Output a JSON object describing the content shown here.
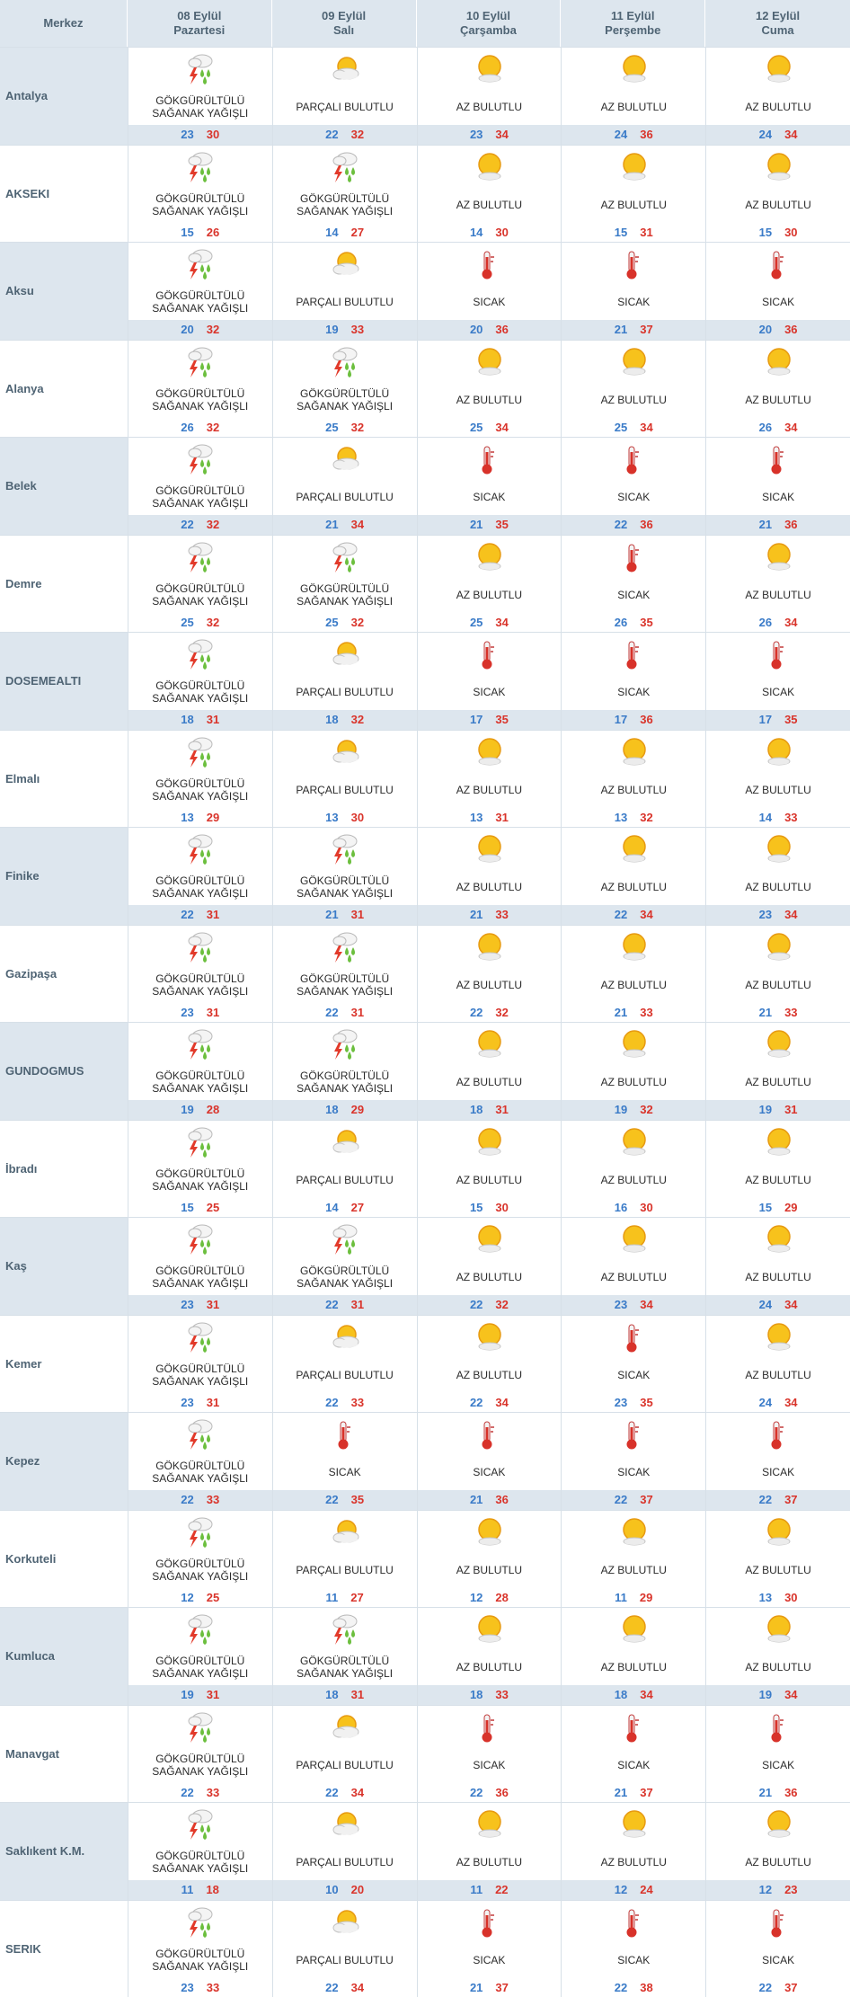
{
  "header": {
    "merkez_label": "Merkez",
    "days": [
      {
        "date": "08 Eylül",
        "weekday": "Pazartesi"
      },
      {
        "date": "09 Eylül",
        "weekday": "Salı"
      },
      {
        "date": "10 Eylül",
        "weekday": "Çarşamba"
      },
      {
        "date": "11 Eylül",
        "weekday": "Perşembe"
      },
      {
        "date": "12 Eylül",
        "weekday": "Cuma"
      }
    ]
  },
  "colors": {
    "header_bg": "#dde6ee",
    "min_temp": "#3a7bc8",
    "max_temp": "#d9342b",
    "city_text": "#4f6474"
  },
  "conditions": {
    "storm": {
      "label": "GÖKGÜRÜLTÜLÜ SAĞANAK YAĞIŞLI",
      "icon": "thunderstorm-rain-icon"
    },
    "partly": {
      "label": "PARÇALI BULUTLU",
      "icon": "partly-cloudy-icon"
    },
    "few": {
      "label": "AZ BULUTLU",
      "icon": "mostly-sunny-icon"
    },
    "hot": {
      "label": "SICAK",
      "icon": "thermometer-hot-icon"
    }
  },
  "rows": [
    {
      "city": "Antalya",
      "days": [
        {
          "cond": "storm",
          "min": "23",
          "max": "30"
        },
        {
          "cond": "partly",
          "min": "22",
          "max": "32"
        },
        {
          "cond": "few",
          "min": "23",
          "max": "34"
        },
        {
          "cond": "few",
          "min": "24",
          "max": "36"
        },
        {
          "cond": "few",
          "min": "24",
          "max": "34"
        }
      ]
    },
    {
      "city": "AKSEKI",
      "days": [
        {
          "cond": "storm",
          "min": "15",
          "max": "26"
        },
        {
          "cond": "storm",
          "min": "14",
          "max": "27"
        },
        {
          "cond": "few",
          "min": "14",
          "max": "30"
        },
        {
          "cond": "few",
          "min": "15",
          "max": "31"
        },
        {
          "cond": "few",
          "min": "15",
          "max": "30"
        }
      ]
    },
    {
      "city": "Aksu",
      "days": [
        {
          "cond": "storm",
          "min": "20",
          "max": "32"
        },
        {
          "cond": "partly",
          "min": "19",
          "max": "33"
        },
        {
          "cond": "hot",
          "min": "20",
          "max": "36"
        },
        {
          "cond": "hot",
          "min": "21",
          "max": "37"
        },
        {
          "cond": "hot",
          "min": "20",
          "max": "36"
        }
      ]
    },
    {
      "city": "Alanya",
      "days": [
        {
          "cond": "storm",
          "min": "26",
          "max": "32"
        },
        {
          "cond": "storm",
          "min": "25",
          "max": "32"
        },
        {
          "cond": "few",
          "min": "25",
          "max": "34"
        },
        {
          "cond": "few",
          "min": "25",
          "max": "34"
        },
        {
          "cond": "few",
          "min": "26",
          "max": "34"
        }
      ]
    },
    {
      "city": "Belek",
      "days": [
        {
          "cond": "storm",
          "min": "22",
          "max": "32"
        },
        {
          "cond": "partly",
          "min": "21",
          "max": "34"
        },
        {
          "cond": "hot",
          "min": "21",
          "max": "35"
        },
        {
          "cond": "hot",
          "min": "22",
          "max": "36"
        },
        {
          "cond": "hot",
          "min": "21",
          "max": "36"
        }
      ]
    },
    {
      "city": "Demre",
      "days": [
        {
          "cond": "storm",
          "min": "25",
          "max": "32"
        },
        {
          "cond": "storm",
          "min": "25",
          "max": "32"
        },
        {
          "cond": "few",
          "min": "25",
          "max": "34"
        },
        {
          "cond": "hot",
          "min": "26",
          "max": "35"
        },
        {
          "cond": "few",
          "min": "26",
          "max": "34"
        }
      ]
    },
    {
      "city": "DOSEMEALTI",
      "days": [
        {
          "cond": "storm",
          "min": "18",
          "max": "31"
        },
        {
          "cond": "partly",
          "min": "18",
          "max": "32"
        },
        {
          "cond": "hot",
          "min": "17",
          "max": "35"
        },
        {
          "cond": "hot",
          "min": "17",
          "max": "36"
        },
        {
          "cond": "hot",
          "min": "17",
          "max": "35"
        }
      ]
    },
    {
      "city": "Elmalı",
      "days": [
        {
          "cond": "storm",
          "min": "13",
          "max": "29"
        },
        {
          "cond": "partly",
          "min": "13",
          "max": "30"
        },
        {
          "cond": "few",
          "min": "13",
          "max": "31"
        },
        {
          "cond": "few",
          "min": "13",
          "max": "32"
        },
        {
          "cond": "few",
          "min": "14",
          "max": "33"
        }
      ]
    },
    {
      "city": "Finike",
      "days": [
        {
          "cond": "storm",
          "min": "22",
          "max": "31"
        },
        {
          "cond": "storm",
          "min": "21",
          "max": "31"
        },
        {
          "cond": "few",
          "min": "21",
          "max": "33"
        },
        {
          "cond": "few",
          "min": "22",
          "max": "34"
        },
        {
          "cond": "few",
          "min": "23",
          "max": "34"
        }
      ]
    },
    {
      "city": "Gazipaşa",
      "days": [
        {
          "cond": "storm",
          "min": "23",
          "max": "31"
        },
        {
          "cond": "storm",
          "min": "22",
          "max": "31"
        },
        {
          "cond": "few",
          "min": "22",
          "max": "32"
        },
        {
          "cond": "few",
          "min": "21",
          "max": "33"
        },
        {
          "cond": "few",
          "min": "21",
          "max": "33"
        }
      ]
    },
    {
      "city": "GUNDOGMUS",
      "days": [
        {
          "cond": "storm",
          "min": "19",
          "max": "28"
        },
        {
          "cond": "storm",
          "min": "18",
          "max": "29"
        },
        {
          "cond": "few",
          "min": "18",
          "max": "31"
        },
        {
          "cond": "few",
          "min": "19",
          "max": "32"
        },
        {
          "cond": "few",
          "min": "19",
          "max": "31"
        }
      ]
    },
    {
      "city": "İbradı",
      "days": [
        {
          "cond": "storm",
          "min": "15",
          "max": "25"
        },
        {
          "cond": "partly",
          "min": "14",
          "max": "27"
        },
        {
          "cond": "few",
          "min": "15",
          "max": "30"
        },
        {
          "cond": "few",
          "min": "16",
          "max": "30"
        },
        {
          "cond": "few",
          "min": "15",
          "max": "29"
        }
      ]
    },
    {
      "city": "Kaş",
      "days": [
        {
          "cond": "storm",
          "min": "23",
          "max": "31"
        },
        {
          "cond": "storm",
          "min": "22",
          "max": "31"
        },
        {
          "cond": "few",
          "min": "22",
          "max": "32"
        },
        {
          "cond": "few",
          "min": "23",
          "max": "34"
        },
        {
          "cond": "few",
          "min": "24",
          "max": "34"
        }
      ]
    },
    {
      "city": "Kemer",
      "days": [
        {
          "cond": "storm",
          "min": "23",
          "max": "31"
        },
        {
          "cond": "partly",
          "min": "22",
          "max": "33"
        },
        {
          "cond": "few",
          "min": "22",
          "max": "34"
        },
        {
          "cond": "hot",
          "min": "23",
          "max": "35"
        },
        {
          "cond": "few",
          "min": "24",
          "max": "34"
        }
      ]
    },
    {
      "city": "Kepez",
      "days": [
        {
          "cond": "storm",
          "min": "22",
          "max": "33"
        },
        {
          "cond": "hot",
          "min": "22",
          "max": "35"
        },
        {
          "cond": "hot",
          "min": "21",
          "max": "36"
        },
        {
          "cond": "hot",
          "min": "22",
          "max": "37"
        },
        {
          "cond": "hot",
          "min": "22",
          "max": "37"
        }
      ]
    },
    {
      "city": "Korkuteli",
      "days": [
        {
          "cond": "storm",
          "min": "12",
          "max": "25"
        },
        {
          "cond": "partly",
          "min": "11",
          "max": "27"
        },
        {
          "cond": "few",
          "min": "12",
          "max": "28"
        },
        {
          "cond": "few",
          "min": "11",
          "max": "29"
        },
        {
          "cond": "few",
          "min": "13",
          "max": "30"
        }
      ]
    },
    {
      "city": "Kumluca",
      "days": [
        {
          "cond": "storm",
          "min": "19",
          "max": "31"
        },
        {
          "cond": "storm",
          "min": "18",
          "max": "31"
        },
        {
          "cond": "few",
          "min": "18",
          "max": "33"
        },
        {
          "cond": "few",
          "min": "18",
          "max": "34"
        },
        {
          "cond": "few",
          "min": "19",
          "max": "34"
        }
      ]
    },
    {
      "city": "Manavgat",
      "days": [
        {
          "cond": "storm",
          "min": "22",
          "max": "33"
        },
        {
          "cond": "partly",
          "min": "22",
          "max": "34"
        },
        {
          "cond": "hot",
          "min": "22",
          "max": "36"
        },
        {
          "cond": "hot",
          "min": "21",
          "max": "37"
        },
        {
          "cond": "hot",
          "min": "21",
          "max": "36"
        }
      ]
    },
    {
      "city": "Saklıkent K.M.",
      "days": [
        {
          "cond": "storm",
          "min": "11",
          "max": "18"
        },
        {
          "cond": "partly",
          "min": "10",
          "max": "20"
        },
        {
          "cond": "few",
          "min": "11",
          "max": "22"
        },
        {
          "cond": "few",
          "min": "12",
          "max": "24"
        },
        {
          "cond": "few",
          "min": "12",
          "max": "23"
        }
      ]
    },
    {
      "city": "SERIK",
      "days": [
        {
          "cond": "storm",
          "min": "23",
          "max": "33"
        },
        {
          "cond": "partly",
          "min": "22",
          "max": "34"
        },
        {
          "cond": "hot",
          "min": "21",
          "max": "37"
        },
        {
          "cond": "hot",
          "min": "22",
          "max": "38"
        },
        {
          "cond": "hot",
          "min": "22",
          "max": "37"
        }
      ]
    }
  ]
}
